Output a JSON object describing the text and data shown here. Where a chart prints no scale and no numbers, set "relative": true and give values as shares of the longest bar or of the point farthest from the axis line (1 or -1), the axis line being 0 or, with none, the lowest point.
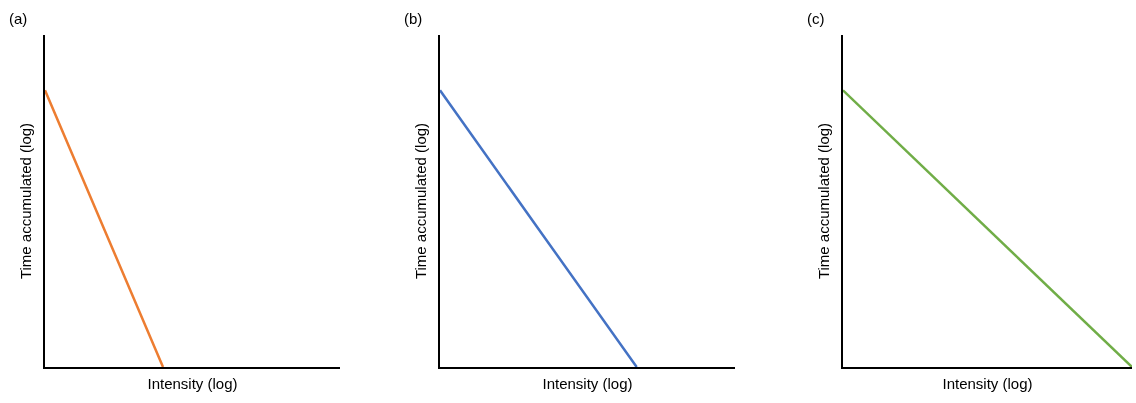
{
  "chart_data": [
    {
      "type": "line",
      "title": "(a)",
      "xlabel": "Intensity (log)",
      "ylabel": "Time accumulated (log)",
      "relative": true,
      "categories": [
        null,
        null,
        null,
        null,
        null,
        null
      ],
      "series": [
        {
          "color": "#ed7d31",
          "values": [
            1,
            0.5,
            0,
            null,
            null,
            null
          ]
        }
      ]
    },
    {
      "type": "line",
      "title": "(b)",
      "xlabel": "Intensity (log)",
      "ylabel": "Time accumulated (log)",
      "relative": true,
      "categories": [
        null,
        null,
        null,
        null
      ],
      "series": [
        {
          "color": "#4472c4",
          "values": [
            1,
            0.5,
            0,
            null
          ]
        }
      ]
    },
    {
      "type": "line",
      "title": "(c)",
      "xlabel": "Intensity (log)",
      "ylabel": "Time accumulated (log)",
      "relative": true,
      "categories": [
        null,
        null
      ],
      "series": [
        {
          "color": "#70ad47",
          "values": [
            1,
            0
          ]
        }
      ]
    }
  ]
}
